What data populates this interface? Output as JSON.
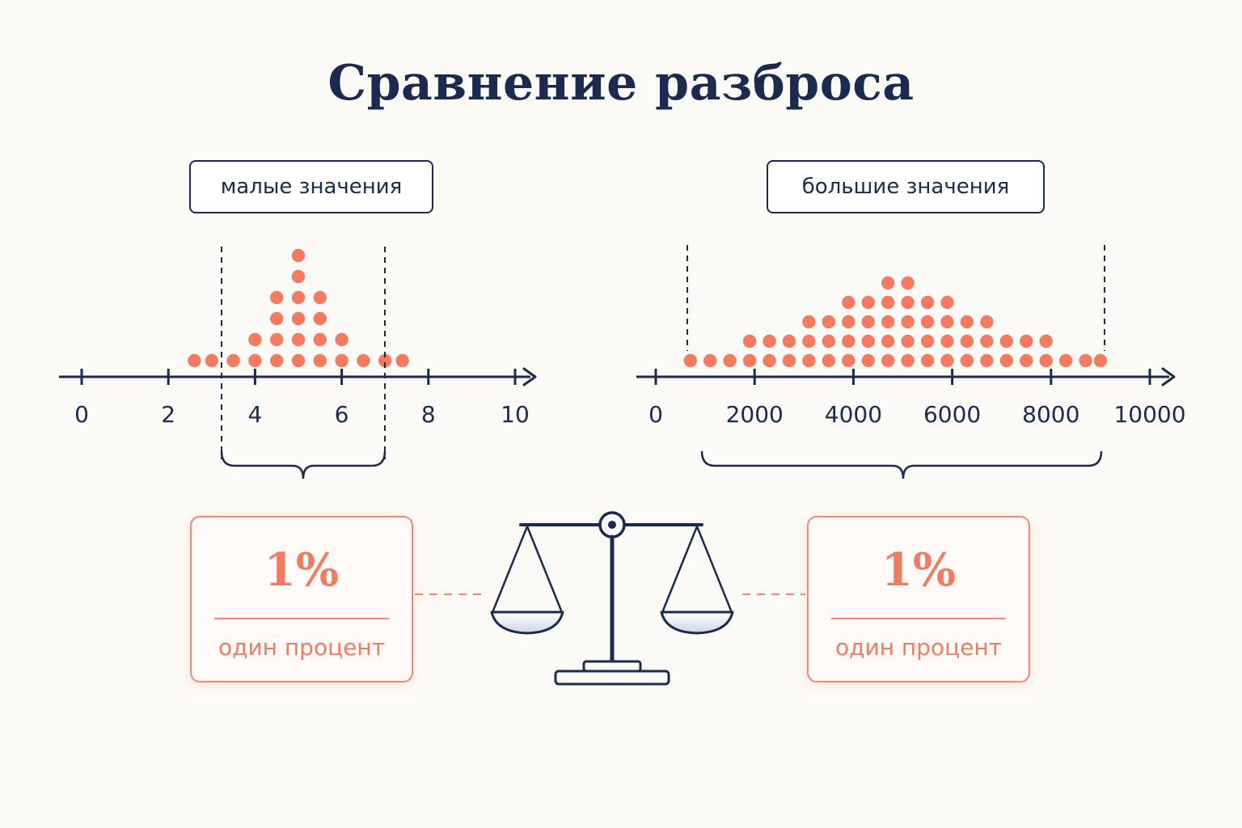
{
  "title": "Сравнение разброса",
  "colors": {
    "navy": "#1b2b4f",
    "coral": "#f47a62",
    "background": "#fcfaf6"
  },
  "left": {
    "label": "малые значения",
    "ticks": [
      "0",
      "2",
      "4",
      "6",
      "8",
      "10"
    ],
    "percent": "1%",
    "caption": "один процент"
  },
  "right": {
    "label": "большие значения",
    "ticks": [
      "0",
      "2000",
      "4000",
      "6000",
      "8000",
      "10000"
    ],
    "percent": "1%",
    "caption": "один процент"
  },
  "balance_icon": "scales-icon",
  "chart_data": [
    {
      "type": "scatter",
      "name": "малые значения",
      "xlim": [
        0,
        10
      ],
      "range_marked": [
        3.1,
        6.9
      ],
      "dot_columns": [
        {
          "x": 2.6,
          "count": 1
        },
        {
          "x": 3.0,
          "count": 1
        },
        {
          "x": 3.5,
          "count": 1
        },
        {
          "x": 4.0,
          "count": 2
        },
        {
          "x": 4.5,
          "count": 4
        },
        {
          "x": 5.0,
          "count": 6
        },
        {
          "x": 5.5,
          "count": 4
        },
        {
          "x": 6.0,
          "count": 2
        },
        {
          "x": 6.5,
          "count": 1
        },
        {
          "x": 7.0,
          "count": 1
        },
        {
          "x": 7.4,
          "count": 1
        }
      ]
    },
    {
      "type": "scatter",
      "name": "большие значения",
      "xlim": [
        0,
        10000
      ],
      "range_marked": [
        600,
        9100
      ],
      "dot_columns": [
        {
          "x": 700,
          "count": 1
        },
        {
          "x": 1100,
          "count": 1
        },
        {
          "x": 1500,
          "count": 1
        },
        {
          "x": 1900,
          "count": 2
        },
        {
          "x": 2300,
          "count": 2
        },
        {
          "x": 2700,
          "count": 2
        },
        {
          "x": 3100,
          "count": 3
        },
        {
          "x": 3500,
          "count": 3
        },
        {
          "x": 3900,
          "count": 4
        },
        {
          "x": 4300,
          "count": 4
        },
        {
          "x": 4700,
          "count": 5
        },
        {
          "x": 5100,
          "count": 5
        },
        {
          "x": 5500,
          "count": 4
        },
        {
          "x": 5900,
          "count": 4
        },
        {
          "x": 6300,
          "count": 3
        },
        {
          "x": 6700,
          "count": 3
        },
        {
          "x": 7100,
          "count": 2
        },
        {
          "x": 7500,
          "count": 2
        },
        {
          "x": 7900,
          "count": 2
        },
        {
          "x": 8300,
          "count": 1
        },
        {
          "x": 8700,
          "count": 1
        },
        {
          "x": 9000,
          "count": 1
        }
      ]
    }
  ]
}
